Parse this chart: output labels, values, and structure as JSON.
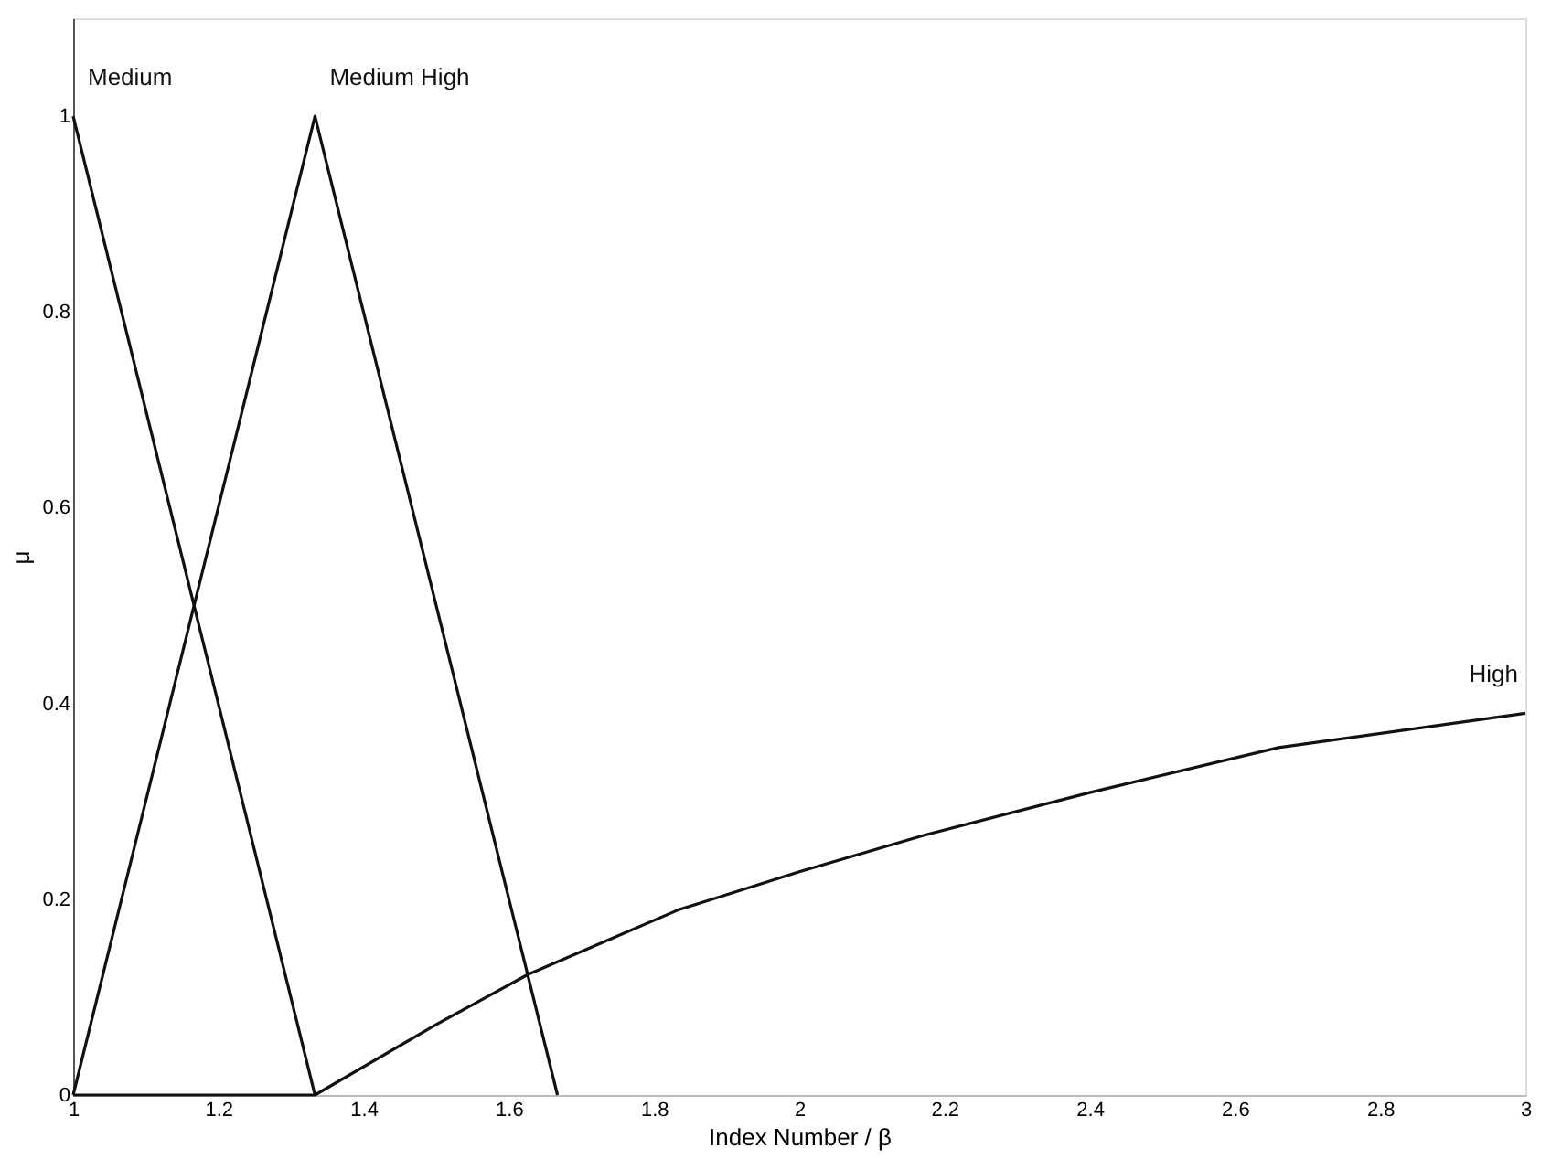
{
  "chart_data": {
    "type": "line",
    "xlabel": "Index Number / β",
    "ylabel": "μ",
    "series": [
      {
        "name": "Medium",
        "color": "#111111",
        "x": [
          1,
          1.333
        ],
        "values": [
          1,
          0
        ]
      },
      {
        "name": "Medium High",
        "color": "#111111",
        "x": [
          1,
          1.333,
          1.667
        ],
        "values": [
          0,
          1,
          0
        ]
      },
      {
        "name": "High",
        "color": "#111111",
        "x": [
          1,
          1.333,
          1.5,
          1.626,
          1.833,
          2.0,
          2.17,
          2.4,
          2.66,
          3.0
        ],
        "values": [
          0,
          0,
          0.072,
          0.123,
          0.189,
          0.228,
          0.265,
          0.309,
          0.355,
          0.39
        ]
      }
    ],
    "xlim": [
      1,
      3
    ],
    "xticks": [
      1,
      1.2,
      1.4,
      1.6,
      1.8,
      2,
      2.2,
      2.4,
      2.6,
      2.8,
      3
    ],
    "ylim": [
      0,
      1.1
    ],
    "yticks": [
      0,
      0.2,
      0.4,
      0.6,
      0.8,
      1
    ],
    "grid": false,
    "marker": "none",
    "line_style": "solid"
  }
}
